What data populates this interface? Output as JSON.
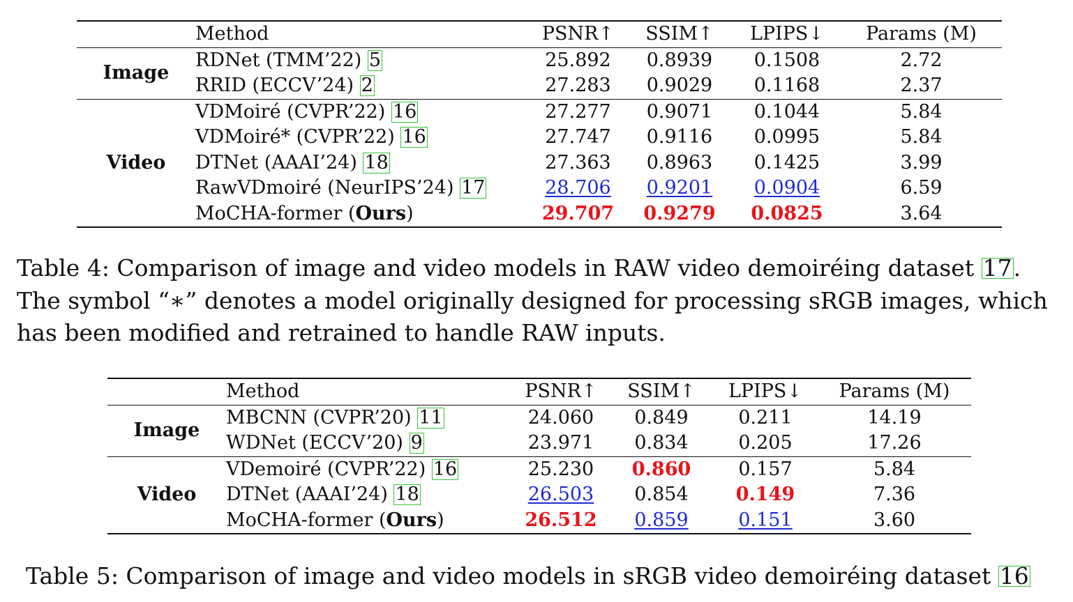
{
  "table4": {
    "headers": [
      "Method",
      "PSNR↑",
      "SSIM↑",
      "LPIPS↓",
      "Params (M)"
    ],
    "groups": [
      {
        "label": "Image",
        "rows": [
          {
            "method": "RDNet (TMM’22)",
            "ref": "5",
            "psnr": "25.892",
            "ssim": "0.8939",
            "lpips": "0.1508",
            "params": "2.72"
          },
          {
            "method": "RRID (ECCV’24)",
            "ref": "2",
            "psnr": "27.283",
            "ssim": "0.9029",
            "lpips": "0.1168",
            "params": "2.37"
          }
        ]
      },
      {
        "label": "Video",
        "rows": [
          {
            "method": "VDMoiré (CVPR’22)",
            "ref": "16",
            "psnr": "27.277",
            "ssim": "0.9071",
            "lpips": "0.1044",
            "params": "5.84"
          },
          {
            "method": "VDMoiré* (CVPR’22)",
            "ref": "16",
            "psnr": "27.747",
            "ssim": "0.9116",
            "lpips": "0.0995",
            "params": "5.84"
          },
          {
            "method": "DTNet (AAAI’24)",
            "ref": "18",
            "psnr": "27.363",
            "ssim": "0.8963",
            "lpips": "0.1425",
            "params": "3.99"
          },
          {
            "method": "RawVDmoiré (NeurIPS’24)",
            "ref": "17",
            "psnr": "28.706",
            "ssim": "0.9201",
            "lpips": "0.0904",
            "params": "6.59"
          },
          {
            "method": "MoCHA-former (",
            "method_bold": "Ours",
            "method_tail": ")",
            "psnr": "29.707",
            "ssim": "0.9279",
            "lpips": "0.0825",
            "params": "3.64"
          }
        ]
      }
    ],
    "caption": {
      "line1_pre": "Table 4: Comparison of image and video models in RAW video demoiréing dataset ",
      "ref": "17",
      "line1_post": ".",
      "line2": "The symbol “∗” denotes a model originally designed for processing sRGB images, which",
      "line3": "has been modified and retrained to handle RAW inputs."
    }
  },
  "table5": {
    "headers": [
      "Method",
      "PSNR↑",
      "SSIM↑",
      "LPIPS↓",
      "Params (M)"
    ],
    "groups": [
      {
        "label": "Image",
        "rows": [
          {
            "method": "MBCNN (CVPR’20)",
            "ref": "11",
            "psnr": "24.060",
            "ssim": "0.849",
            "lpips": "0.211",
            "params": "14.19"
          },
          {
            "method": "WDNet (ECCV’20)",
            "ref": "9",
            "psnr": "23.971",
            "ssim": "0.834",
            "lpips": "0.205",
            "params": "17.26"
          }
        ]
      },
      {
        "label": "Video",
        "rows": [
          {
            "method": "VDemoiré (CVPR’22)",
            "ref": "16",
            "psnr": "25.230",
            "ssim": "0.860",
            "lpips": "0.157",
            "params": "5.84"
          },
          {
            "method": "DTNet (AAAI’24)",
            "ref": "18",
            "psnr": "26.503",
            "ssim": "0.854",
            "lpips": "0.149",
            "params": "7.36"
          },
          {
            "method": "MoCHA-former (",
            "method_bold": "Ours",
            "method_tail": ")",
            "psnr": "26.512",
            "ssim": "0.859",
            "lpips": "0.151",
            "params": "3.60"
          }
        ]
      }
    ],
    "caption": {
      "line1_pre": "Table 5: Comparison of image and video models in sRGB video demoiréing dataset ",
      "ref": "16"
    }
  }
}
